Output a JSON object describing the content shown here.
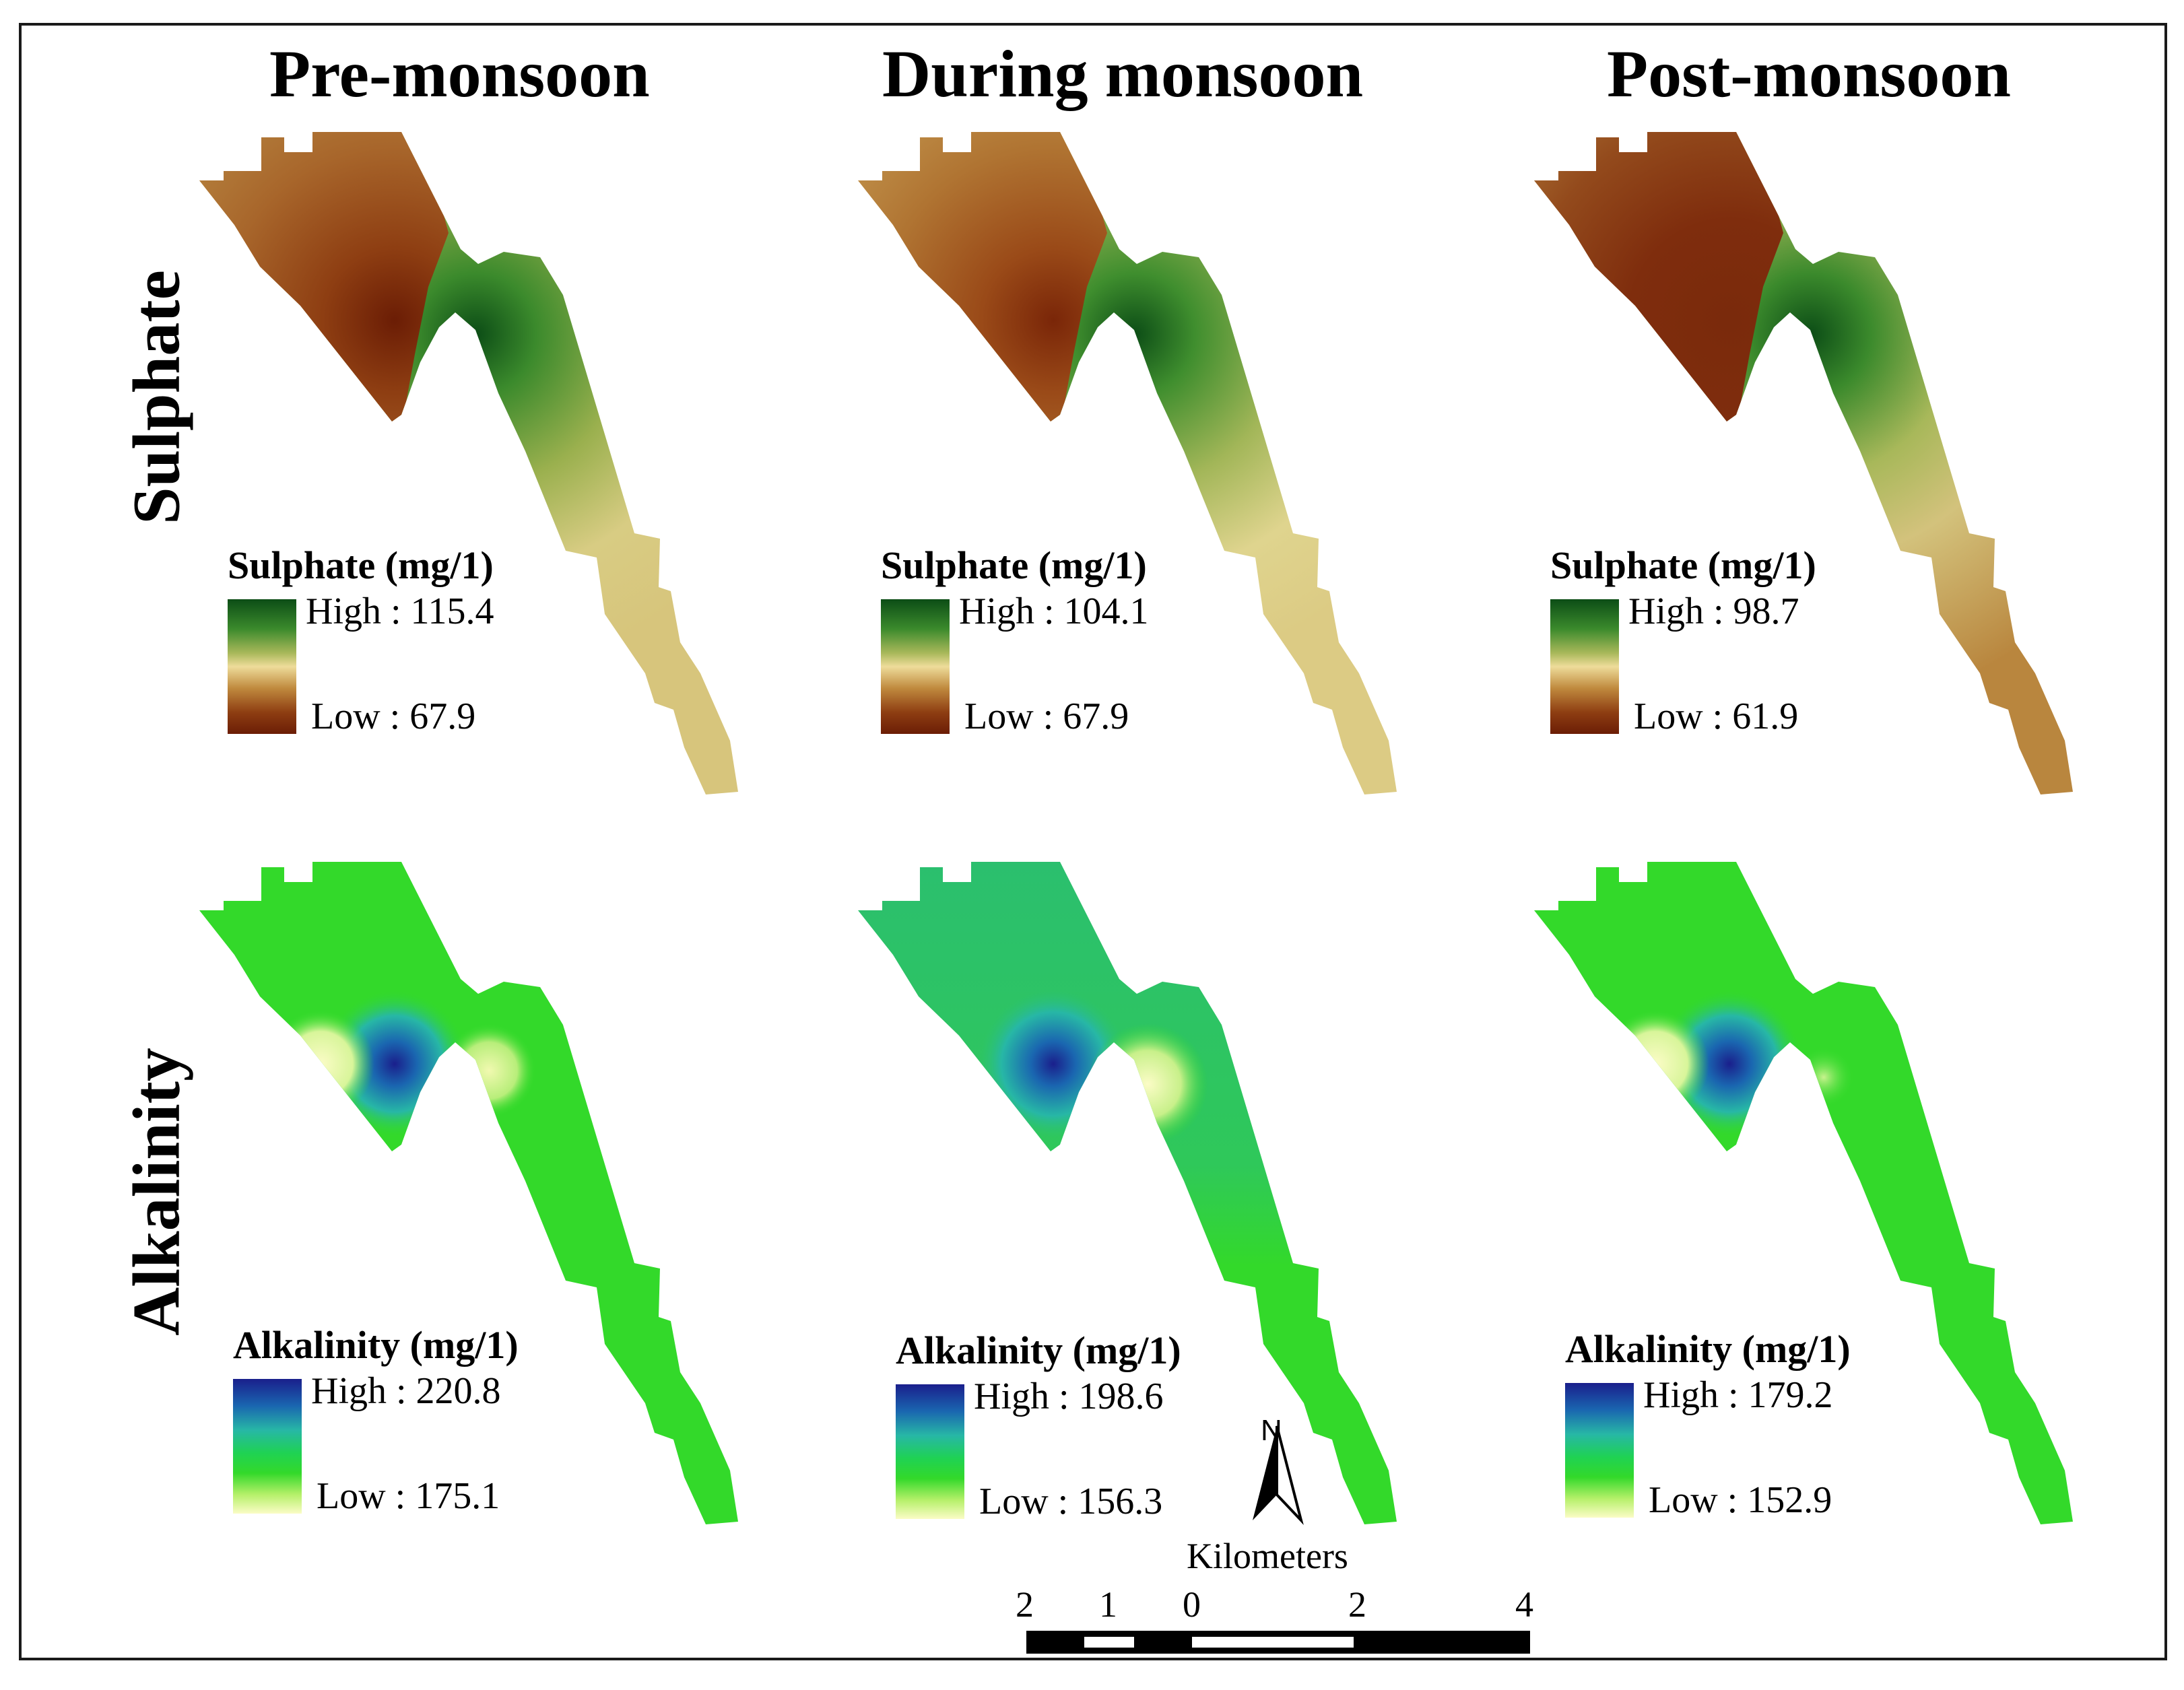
{
  "columns": [
    "Pre-monsoon",
    "During monsoon",
    "Post-monsoon"
  ],
  "rows": [
    "Sulphate",
    "Alkalinity"
  ],
  "colors": {
    "sulphate_high": "#0c4d16",
    "sulphate_mid": "#eedc9a",
    "sulphate_low": "#6b1d05",
    "alkalinity_high": "#1a1f8c",
    "alkalinity_mid": "#33d92a",
    "alkalinity_low": "#fbfcc6"
  },
  "panels": {
    "sulphate": [
      {
        "legend_title": "Sulphate (mg/1)",
        "high": "High : 115.4",
        "low": "Low : 67.9"
      },
      {
        "legend_title": "Sulphate (mg/1)",
        "high": "High : 104.1",
        "low": "Low : 67.9"
      },
      {
        "legend_title": "Sulphate (mg/1)",
        "high": "High : 98.7",
        "low": "Low : 61.9"
      }
    ],
    "alkalinity": [
      {
        "legend_title": "Alkalinity (mg/1)",
        "high": "High : 220.8",
        "low": "Low : 175.1"
      },
      {
        "legend_title": "Alkalinity (mg/1)",
        "high": "High : 198.6",
        "low": "Low : 156.3"
      },
      {
        "legend_title": "Alkalinity (mg/1)",
        "high": "High : 179.2",
        "low": "Low : 152.9"
      }
    ]
  },
  "north_arrow": {
    "label": "N",
    "icon": "north-arrow-icon"
  },
  "scale_bar": {
    "unit": "Kilometers",
    "ticks": [
      "2",
      "1",
      "0",
      "2",
      "4"
    ]
  }
}
